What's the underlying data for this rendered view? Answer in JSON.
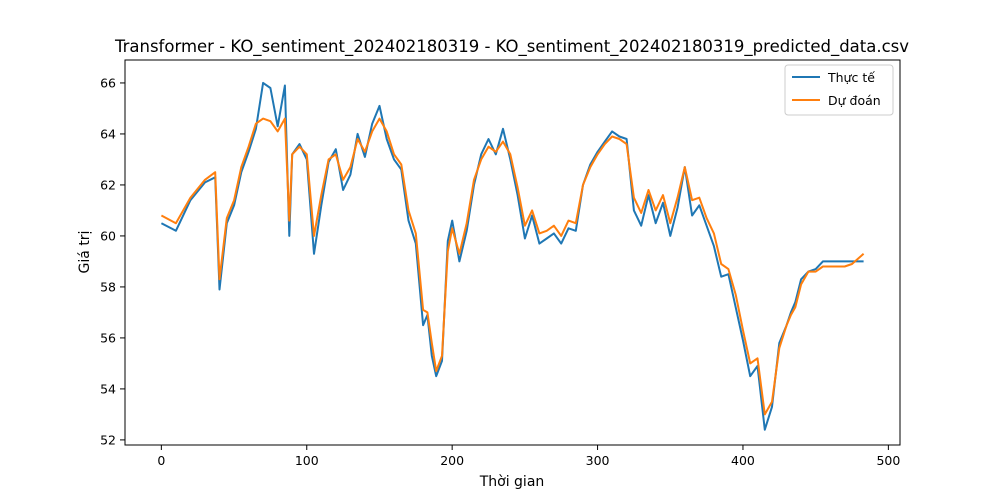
{
  "chart_data": {
    "type": "line",
    "title": "Transformer - KO_sentiment_202402180319 - KO_sentiment_202402180319_predicted_data.csv",
    "xlabel": "Thời gian",
    "ylabel": "Giá trị",
    "xlim": [
      -25,
      508
    ],
    "ylim": [
      51.8,
      66.9
    ],
    "xticks": [
      0,
      100,
      200,
      300,
      400,
      500
    ],
    "yticks": [
      52,
      54,
      56,
      58,
      60,
      62,
      64,
      66
    ],
    "grid": false,
    "legend_position": "top-right",
    "x": [
      0,
      10,
      20,
      30,
      37,
      40,
      45,
      50,
      55,
      60,
      65,
      70,
      75,
      80,
      85,
      88,
      90,
      95,
      100,
      105,
      110,
      115,
      120,
      125,
      130,
      135,
      140,
      145,
      150,
      155,
      160,
      165,
      170,
      175,
      180,
      183,
      186,
      189,
      193,
      197,
      200,
      205,
      210,
      215,
      220,
      225,
      230,
      235,
      240,
      245,
      250,
      255,
      260,
      265,
      270,
      275,
      280,
      285,
      290,
      295,
      300,
      305,
      310,
      315,
      320,
      325,
      330,
      335,
      340,
      345,
      350,
      355,
      360,
      365,
      370,
      375,
      380,
      385,
      390,
      395,
      400,
      405,
      410,
      415,
      420,
      425,
      430,
      433,
      436,
      440,
      445,
      450,
      455,
      460,
      465,
      470,
      475,
      483
    ],
    "series": [
      {
        "name": "Thực tế",
        "color": "#1f77b4",
        "values": [
          60.5,
          60.2,
          61.4,
          62.1,
          62.3,
          57.9,
          60.5,
          61.2,
          62.5,
          63.3,
          64.2,
          66.0,
          65.8,
          64.3,
          65.9,
          60.0,
          63.2,
          63.6,
          63.0,
          59.3,
          61.2,
          62.9,
          63.4,
          61.8,
          62.4,
          64.0,
          63.1,
          64.4,
          65.1,
          63.8,
          63.0,
          62.6,
          60.6,
          59.7,
          56.5,
          56.9,
          55.3,
          54.5,
          55.1,
          59.8,
          60.6,
          59.0,
          60.2,
          62.0,
          63.2,
          63.8,
          63.2,
          64.2,
          63.0,
          61.6,
          59.9,
          60.8,
          59.7,
          59.9,
          60.1,
          59.7,
          60.3,
          60.2,
          62.0,
          62.8,
          63.3,
          63.7,
          64.1,
          63.9,
          63.8,
          61.0,
          60.4,
          61.6,
          60.5,
          61.3,
          60.0,
          61.1,
          62.7,
          60.8,
          61.2,
          60.4,
          59.6,
          58.4,
          58.5,
          57.2,
          55.9,
          54.5,
          54.9,
          52.4,
          53.3,
          55.8,
          56.5,
          57.0,
          57.4,
          58.3,
          58.6,
          58.7,
          59.0,
          59.0,
          59.0,
          59.0,
          59.0,
          59.0
        ]
      },
      {
        "name": "Dự đoán",
        "color": "#ff7f0e",
        "values": [
          60.8,
          60.5,
          61.5,
          62.2,
          62.5,
          58.3,
          60.7,
          61.4,
          62.7,
          63.5,
          64.4,
          64.6,
          64.5,
          64.1,
          64.6,
          60.6,
          63.2,
          63.5,
          63.2,
          60.0,
          61.6,
          63.0,
          63.2,
          62.2,
          62.7,
          63.8,
          63.3,
          64.1,
          64.6,
          64.1,
          63.2,
          62.8,
          61.0,
          60.1,
          57.1,
          57.0,
          55.8,
          54.7,
          55.3,
          59.4,
          60.3,
          59.3,
          60.5,
          62.2,
          63.0,
          63.5,
          63.3,
          63.7,
          63.2,
          61.9,
          60.4,
          61.0,
          60.1,
          60.2,
          60.4,
          60.0,
          60.6,
          60.5,
          62.0,
          62.7,
          63.2,
          63.6,
          63.9,
          63.8,
          63.6,
          61.5,
          60.9,
          61.8,
          61.0,
          61.6,
          60.5,
          61.5,
          62.7,
          61.4,
          61.5,
          60.7,
          60.1,
          58.9,
          58.7,
          57.7,
          56.3,
          55.0,
          55.2,
          53.0,
          53.5,
          55.6,
          56.5,
          56.9,
          57.2,
          58.1,
          58.6,
          58.6,
          58.8,
          58.8,
          58.8,
          58.8,
          58.9,
          59.3
        ]
      }
    ]
  }
}
